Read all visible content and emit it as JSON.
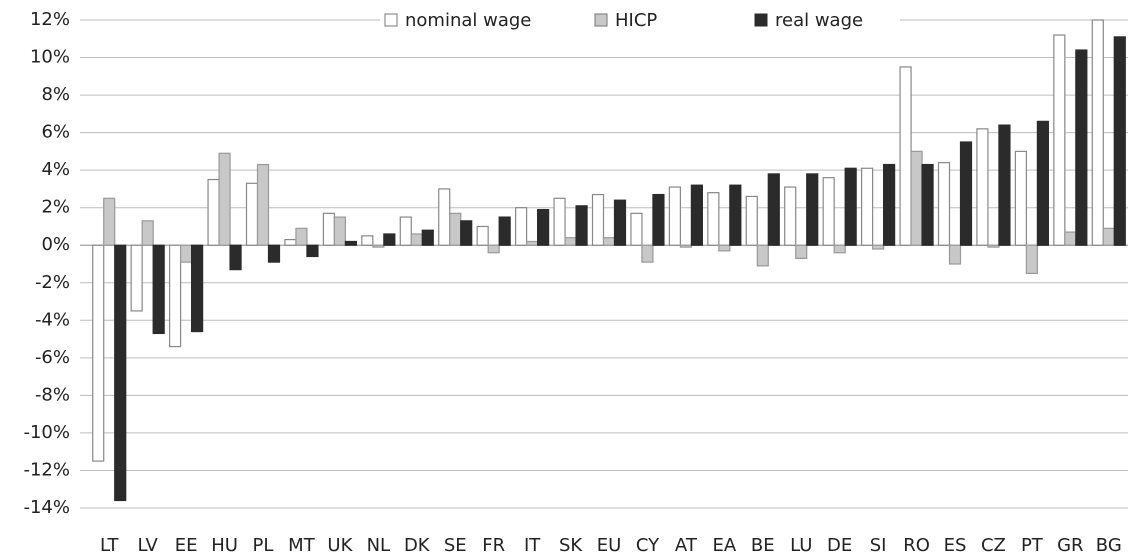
{
  "chart_data": {
    "type": "bar",
    "categories": [
      "LT",
      "LV",
      "EE",
      "HU",
      "PL",
      "MT",
      "UK",
      "NL",
      "DK",
      "SE",
      "FR",
      "IT",
      "SK",
      "EU",
      "CY",
      "AT",
      "EA",
      "BE",
      "LU",
      "DE",
      "SI",
      "RO",
      "ES",
      "CZ",
      "PT",
      "GR",
      "BG"
    ],
    "series": [
      {
        "name": "nominal wage",
        "color": "#ffffff",
        "values": [
          -11.5,
          -3.5,
          -5.4,
          3.5,
          3.3,
          0.3,
          1.7,
          0.5,
          1.5,
          3.0,
          1.0,
          2.0,
          2.5,
          2.7,
          1.7,
          3.1,
          2.8,
          2.6,
          3.1,
          3.6,
          4.1,
          9.5,
          4.4,
          6.2,
          5.0,
          11.2,
          12.0
        ]
      },
      {
        "name": "HICP",
        "color": "#c8c8c8",
        "values": [
          2.5,
          1.3,
          -0.9,
          4.9,
          4.3,
          0.9,
          1.5,
          -0.1,
          0.6,
          1.7,
          -0.4,
          0.2,
          0.4,
          0.4,
          -0.9,
          -0.1,
          -0.3,
          -1.1,
          -0.7,
          -0.4,
          -0.2,
          5.0,
          -1.0,
          -0.1,
          -1.5,
          0.7,
          0.9
        ]
      },
      {
        "name": "real wage",
        "color": "#2b2b2b",
        "values": [
          -13.6,
          -4.7,
          -4.6,
          -1.3,
          -0.9,
          -0.6,
          0.2,
          0.6,
          0.8,
          1.3,
          1.5,
          1.9,
          2.1,
          2.4,
          2.7,
          3.2,
          3.2,
          3.8,
          3.8,
          4.1,
          4.3,
          4.3,
          5.5,
          6.4,
          6.6,
          10.4,
          11.1
        ]
      }
    ],
    "ylim": [
      -14,
      12
    ],
    "yticks": [
      {
        "value": -14,
        "label": "-14%"
      },
      {
        "value": -12,
        "label": "-12%"
      },
      {
        "value": -10,
        "label": "-10%"
      },
      {
        "value": -8,
        "label": "-8%"
      },
      {
        "value": -6,
        "label": "-6%"
      },
      {
        "value": -4,
        "label": "-4%"
      },
      {
        "value": -2,
        "label": "-2%"
      },
      {
        "value": 0,
        "label": "0%"
      },
      {
        "value": 2,
        "label": "2%"
      },
      {
        "value": 4,
        "label": "4%"
      },
      {
        "value": 6,
        "label": "6%"
      },
      {
        "value": 8,
        "label": "8%"
      },
      {
        "value": 10,
        "label": "10%"
      },
      {
        "value": 12,
        "label": "12%"
      }
    ],
    "grid": true
  }
}
